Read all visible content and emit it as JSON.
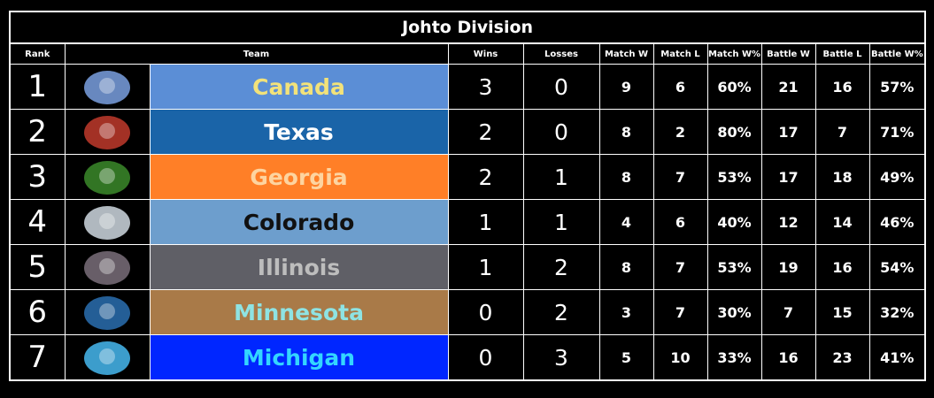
{
  "table": {
    "title": "Johto Division",
    "headers": [
      "Rank",
      "Team",
      "Wins",
      "Losses",
      "Match W",
      "Match L",
      "Match W%",
      "Battle W",
      "Battle L",
      "Battle W%"
    ],
    "rows": [
      [
        "1",
        "Canada",
        "3",
        "0",
        "9",
        "6",
        "60%",
        "21",
        "16",
        "57%"
      ],
      [
        "2",
        "Texas",
        "2",
        "0",
        "8",
        "2",
        "80%",
        "17",
        "7",
        "71%"
      ],
      [
        "3",
        "Georgia",
        "2",
        "1",
        "8",
        "7",
        "53%",
        "17",
        "18",
        "49%"
      ],
      [
        "4",
        "Colorado",
        "1",
        "1",
        "4",
        "6",
        "40%",
        "12",
        "14",
        "46%"
      ],
      [
        "5",
        "Illinois",
        "1",
        "2",
        "8",
        "7",
        "53%",
        "19",
        "16",
        "54%"
      ],
      [
        "6",
        "Minnesota",
        "0",
        "2",
        "3",
        "7",
        "30%",
        "7",
        "15",
        "32%"
      ],
      [
        "7",
        "Michigan",
        "0",
        "3",
        "5",
        "10",
        "33%",
        "16",
        "23",
        "41%"
      ]
    ]
  }
}
